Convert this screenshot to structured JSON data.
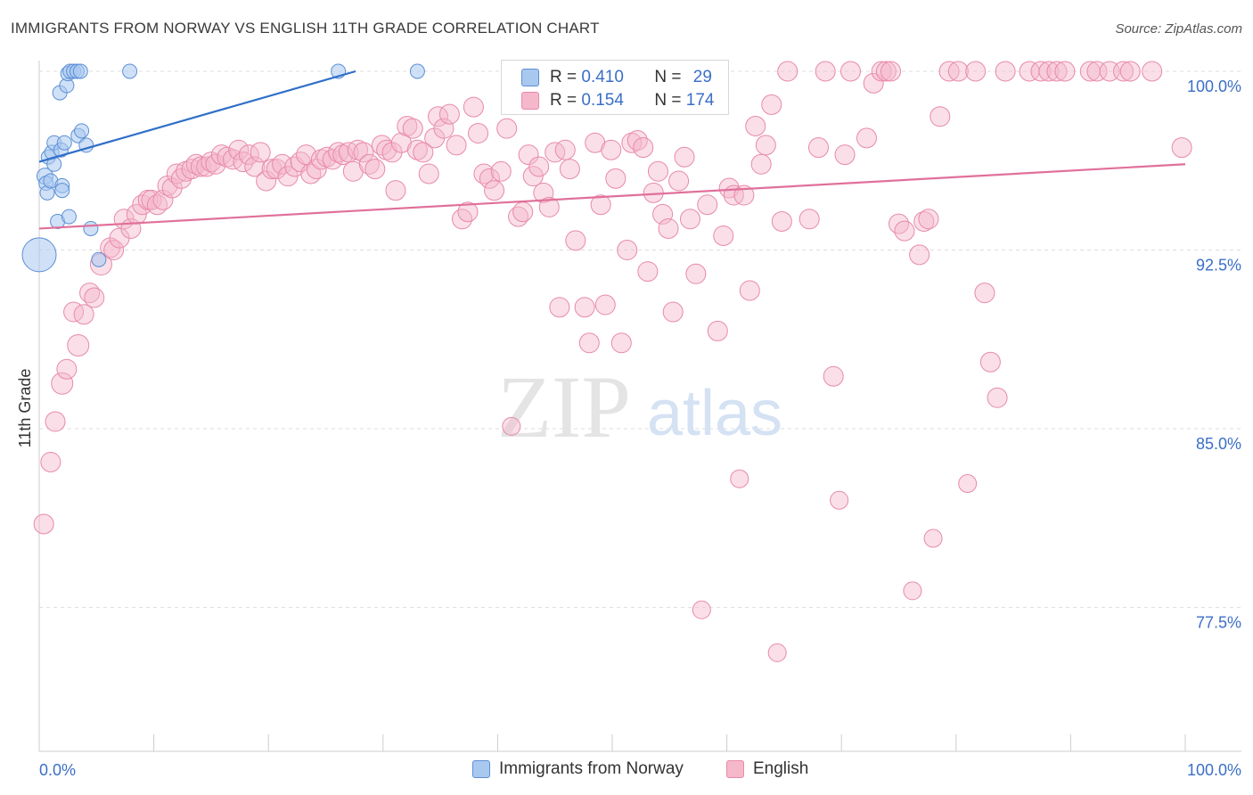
{
  "header": {
    "title": "IMMIGRANTS FROM NORWAY VS ENGLISH 11TH GRADE CORRELATION CHART",
    "source": "Source: ZipAtlas.com"
  },
  "watermark": {
    "zip": "ZIP",
    "atlas": "atlas"
  },
  "colors": {
    "norway_fill": "#a9c8f0",
    "norway_stroke": "#5b8fd6",
    "norway_line": "#2f6fc8",
    "english_fill": "#f5b8cb",
    "english_stroke": "#e88aa8",
    "english_line": "#e0709a",
    "tick_label": "#3b6fc7",
    "grid": "#dddddd"
  },
  "stats": {
    "norway": {
      "r_label": "R =",
      "r_value": "0.410",
      "n_label": "N =",
      "n_value": "29"
    },
    "english": {
      "r_label": "R =",
      "r_value": "0.154",
      "n_label": "N =",
      "n_value": "174"
    }
  },
  "legend": {
    "norway": "Immigrants from Norway",
    "english": "English"
  },
  "chart_data": {
    "type": "scatter",
    "ylabel": "11th Grade",
    "xlabel": "",
    "xlim": [
      0,
      100
    ],
    "ylim": [
      71.5,
      101.5
    ],
    "x_tick_labels": {
      "min": "0.0%",
      "max": "100.0%"
    },
    "y_ticks": [
      {
        "value": 100.0,
        "label": "100.0%"
      },
      {
        "value": 92.5,
        "label": "92.5%"
      },
      {
        "value": 85.0,
        "label": "85.0%"
      },
      {
        "value": 77.5,
        "label": "77.5%"
      }
    ],
    "grid": true,
    "series": [
      {
        "name": "Immigrants from Norway",
        "trend": {
          "x": [
            0,
            27.6
          ],
          "y": [
            96.2,
            100.0
          ]
        },
        "points": [
          [
            0.0,
            92.3,
            36
          ],
          [
            0.5,
            95.6,
            16
          ],
          [
            0.6,
            95.3,
            14
          ],
          [
            0.7,
            94.9,
            14
          ],
          [
            0.8,
            96.4,
            14
          ],
          [
            1.0,
            95.4,
            14
          ],
          [
            1.1,
            96.6,
            14
          ],
          [
            1.3,
            96.1,
            14
          ],
          [
            1.3,
            97.0,
            14
          ],
          [
            1.6,
            93.7,
            14
          ],
          [
            1.8,
            99.1,
            14
          ],
          [
            1.9,
            96.7,
            14
          ],
          [
            2.0,
            95.2,
            14
          ],
          [
            2.0,
            95.0,
            14
          ],
          [
            2.2,
            97.0,
            14
          ],
          [
            2.4,
            99.4,
            14
          ],
          [
            2.5,
            99.9,
            14
          ],
          [
            2.6,
            93.9,
            14
          ],
          [
            2.7,
            100.0,
            14
          ],
          [
            3.0,
            100.0,
            14
          ],
          [
            3.3,
            100.0,
            14
          ],
          [
            3.4,
            97.3,
            14
          ],
          [
            3.6,
            100.0,
            14
          ],
          [
            3.7,
            97.5,
            14
          ],
          [
            4.1,
            96.9,
            14
          ],
          [
            4.5,
            93.4,
            14
          ],
          [
            5.2,
            92.1,
            14
          ],
          [
            7.9,
            100.0,
            14
          ],
          [
            26.1,
            100.0,
            14
          ],
          [
            33.0,
            100.0,
            14
          ]
        ]
      },
      {
        "name": "English",
        "trend": {
          "x": [
            0,
            100
          ],
          "y": [
            93.4,
            96.1
          ]
        },
        "points": [
          [
            0.4,
            81.0,
            18
          ],
          [
            1.0,
            83.6,
            18
          ],
          [
            1.4,
            85.3,
            18
          ],
          [
            2.0,
            86.9,
            20
          ],
          [
            2.4,
            87.5,
            18
          ],
          [
            3.0,
            89.9,
            18
          ],
          [
            3.4,
            88.5,
            20
          ],
          [
            3.9,
            89.8,
            18
          ],
          [
            4.4,
            90.7,
            18
          ],
          [
            4.8,
            90.5,
            18
          ],
          [
            5.4,
            91.9,
            20
          ],
          [
            6.2,
            92.6,
            18
          ],
          [
            6.5,
            92.5,
            18
          ],
          [
            7.0,
            93.0,
            18
          ],
          [
            7.4,
            93.8,
            18
          ],
          [
            8.0,
            93.4,
            18
          ],
          [
            8.5,
            94.0,
            18
          ],
          [
            9.0,
            94.4,
            18
          ],
          [
            9.5,
            94.6,
            18
          ],
          [
            9.8,
            94.6,
            18
          ],
          [
            10.3,
            94.4,
            18
          ],
          [
            10.8,
            94.6,
            18
          ],
          [
            11.2,
            95.2,
            18
          ],
          [
            11.6,
            95.1,
            18
          ],
          [
            12.0,
            95.7,
            18
          ],
          [
            12.4,
            95.5,
            18
          ],
          [
            12.8,
            95.8,
            18
          ],
          [
            13.3,
            95.9,
            18
          ],
          [
            13.7,
            96.1,
            18
          ],
          [
            14.1,
            96.0,
            18
          ],
          [
            14.6,
            96.0,
            18
          ],
          [
            15.0,
            96.2,
            18
          ],
          [
            15.4,
            96.1,
            18
          ],
          [
            15.9,
            96.5,
            18
          ],
          [
            16.4,
            96.4,
            18
          ],
          [
            16.9,
            96.3,
            18
          ],
          [
            17.4,
            96.7,
            18
          ],
          [
            17.8,
            96.2,
            18
          ],
          [
            18.3,
            96.5,
            18
          ],
          [
            18.8,
            96.0,
            18
          ],
          [
            19.3,
            96.6,
            18
          ],
          [
            19.8,
            95.4,
            18
          ],
          [
            20.3,
            95.9,
            18
          ],
          [
            20.7,
            95.9,
            18
          ],
          [
            21.2,
            96.1,
            18
          ],
          [
            21.7,
            95.6,
            18
          ],
          [
            22.3,
            96.0,
            18
          ],
          [
            22.8,
            96.2,
            18
          ],
          [
            23.3,
            96.5,
            18
          ],
          [
            23.7,
            95.7,
            18
          ],
          [
            24.2,
            95.9,
            18
          ],
          [
            24.6,
            96.3,
            18
          ],
          [
            25.1,
            96.4,
            18
          ],
          [
            25.6,
            96.3,
            18
          ],
          [
            26.1,
            96.6,
            18
          ],
          [
            26.5,
            96.5,
            18
          ],
          [
            27.0,
            96.6,
            18
          ],
          [
            27.4,
            95.8,
            18
          ],
          [
            27.8,
            96.7,
            18
          ],
          [
            28.3,
            96.6,
            18
          ],
          [
            28.8,
            96.1,
            18
          ],
          [
            29.3,
            95.9,
            18
          ],
          [
            29.9,
            96.9,
            18
          ],
          [
            30.3,
            96.7,
            18
          ],
          [
            30.8,
            96.6,
            18
          ],
          [
            31.1,
            95.0,
            18
          ],
          [
            31.6,
            97.0,
            18
          ],
          [
            32.1,
            97.7,
            18
          ],
          [
            32.6,
            97.6,
            18
          ],
          [
            33.0,
            96.7,
            18
          ],
          [
            33.5,
            96.6,
            18
          ],
          [
            34.0,
            95.7,
            18
          ],
          [
            34.5,
            97.2,
            18
          ],
          [
            34.8,
            98.1,
            18
          ],
          [
            35.3,
            97.6,
            18
          ],
          [
            35.8,
            98.2,
            18
          ],
          [
            36.4,
            96.9,
            18
          ],
          [
            36.9,
            93.8,
            18
          ],
          [
            37.4,
            94.1,
            18
          ],
          [
            37.9,
            98.5,
            18
          ],
          [
            38.3,
            97.4,
            18
          ],
          [
            38.8,
            95.7,
            18
          ],
          [
            39.3,
            95.5,
            18
          ],
          [
            39.7,
            95.0,
            18
          ],
          [
            40.3,
            95.8,
            18
          ],
          [
            40.8,
            97.6,
            18
          ],
          [
            41.2,
            85.1,
            16
          ],
          [
            41.8,
            93.9,
            18
          ],
          [
            42.2,
            94.1,
            18
          ],
          [
            42.7,
            96.5,
            18
          ],
          [
            43.1,
            95.6,
            18
          ],
          [
            43.6,
            96.0,
            18
          ],
          [
            44.0,
            94.9,
            18
          ],
          [
            44.5,
            94.3,
            18
          ],
          [
            45.0,
            96.6,
            18
          ],
          [
            45.4,
            90.1,
            18
          ],
          [
            45.9,
            96.7,
            18
          ],
          [
            46.3,
            95.9,
            18
          ],
          [
            46.8,
            92.9,
            18
          ],
          [
            47.2,
            98.9,
            18
          ],
          [
            47.6,
            90.1,
            18
          ],
          [
            48.0,
            88.6,
            18
          ],
          [
            48.5,
            97.0,
            18
          ],
          [
            49.0,
            94.4,
            18
          ],
          [
            49.4,
            90.2,
            18
          ],
          [
            49.9,
            96.7,
            18
          ],
          [
            50.3,
            95.5,
            18
          ],
          [
            50.8,
            88.6,
            18
          ],
          [
            51.3,
            92.5,
            18
          ],
          [
            51.7,
            97.0,
            18
          ],
          [
            52.2,
            97.1,
            18
          ],
          [
            52.7,
            96.8,
            18
          ],
          [
            53.1,
            91.6,
            18
          ],
          [
            53.6,
            94.9,
            18
          ],
          [
            54.0,
            95.8,
            18
          ],
          [
            54.4,
            94.0,
            18
          ],
          [
            54.9,
            93.4,
            18
          ],
          [
            55.3,
            89.9,
            18
          ],
          [
            55.8,
            95.4,
            18
          ],
          [
            56.3,
            96.4,
            18
          ],
          [
            56.8,
            93.8,
            18
          ],
          [
            57.3,
            91.5,
            18
          ],
          [
            57.8,
            77.4,
            16
          ],
          [
            58.3,
            94.4,
            18
          ],
          [
            58.8,
            99.6,
            18
          ],
          [
            59.2,
            89.1,
            18
          ],
          [
            59.7,
            93.1,
            18
          ],
          [
            60.2,
            95.1,
            18
          ],
          [
            60.6,
            94.8,
            18
          ],
          [
            61.1,
            82.9,
            16
          ],
          [
            61.5,
            94.8,
            18
          ],
          [
            62.0,
            90.8,
            18
          ],
          [
            62.5,
            97.7,
            18
          ],
          [
            63.0,
            96.1,
            18
          ],
          [
            63.4,
            96.9,
            18
          ],
          [
            63.9,
            98.6,
            18
          ],
          [
            64.4,
            75.6,
            16
          ],
          [
            64.8,
            93.7,
            18
          ],
          [
            65.3,
            100.0,
            18
          ],
          [
            67.2,
            93.8,
            18
          ],
          [
            68.0,
            96.8,
            18
          ],
          [
            68.6,
            100.0,
            18
          ],
          [
            69.3,
            87.2,
            18
          ],
          [
            69.8,
            82.0,
            16
          ],
          [
            70.3,
            96.5,
            18
          ],
          [
            70.8,
            100.0,
            18
          ],
          [
            72.2,
            97.2,
            18
          ],
          [
            72.8,
            99.5,
            18
          ],
          [
            73.5,
            100.0,
            18
          ],
          [
            73.9,
            100.0,
            18
          ],
          [
            74.3,
            100.0,
            18
          ],
          [
            75.0,
            93.6,
            18
          ],
          [
            75.5,
            93.3,
            18
          ],
          [
            76.2,
            78.2,
            16
          ],
          [
            76.8,
            92.3,
            18
          ],
          [
            77.2,
            93.7,
            18
          ],
          [
            77.6,
            93.8,
            18
          ],
          [
            78.0,
            80.4,
            16
          ],
          [
            78.6,
            98.1,
            18
          ],
          [
            79.4,
            100.0,
            18
          ],
          [
            80.2,
            100.0,
            18
          ],
          [
            81.0,
            82.7,
            16
          ],
          [
            81.7,
            100.0,
            18
          ],
          [
            82.5,
            90.7,
            18
          ],
          [
            83.0,
            87.8,
            18
          ],
          [
            83.6,
            86.3,
            18
          ],
          [
            84.3,
            100.0,
            18
          ],
          [
            86.4,
            100.0,
            18
          ],
          [
            87.4,
            100.0,
            18
          ],
          [
            88.1,
            100.0,
            18
          ],
          [
            88.8,
            100.0,
            18
          ],
          [
            89.5,
            100.0,
            18
          ],
          [
            91.7,
            100.0,
            18
          ],
          [
            92.3,
            100.0,
            18
          ],
          [
            93.4,
            100.0,
            18
          ],
          [
            94.6,
            100.0,
            18
          ],
          [
            95.2,
            100.0,
            18
          ],
          [
            97.1,
            100.0,
            18
          ],
          [
            99.7,
            96.8,
            18
          ]
        ]
      }
    ]
  }
}
